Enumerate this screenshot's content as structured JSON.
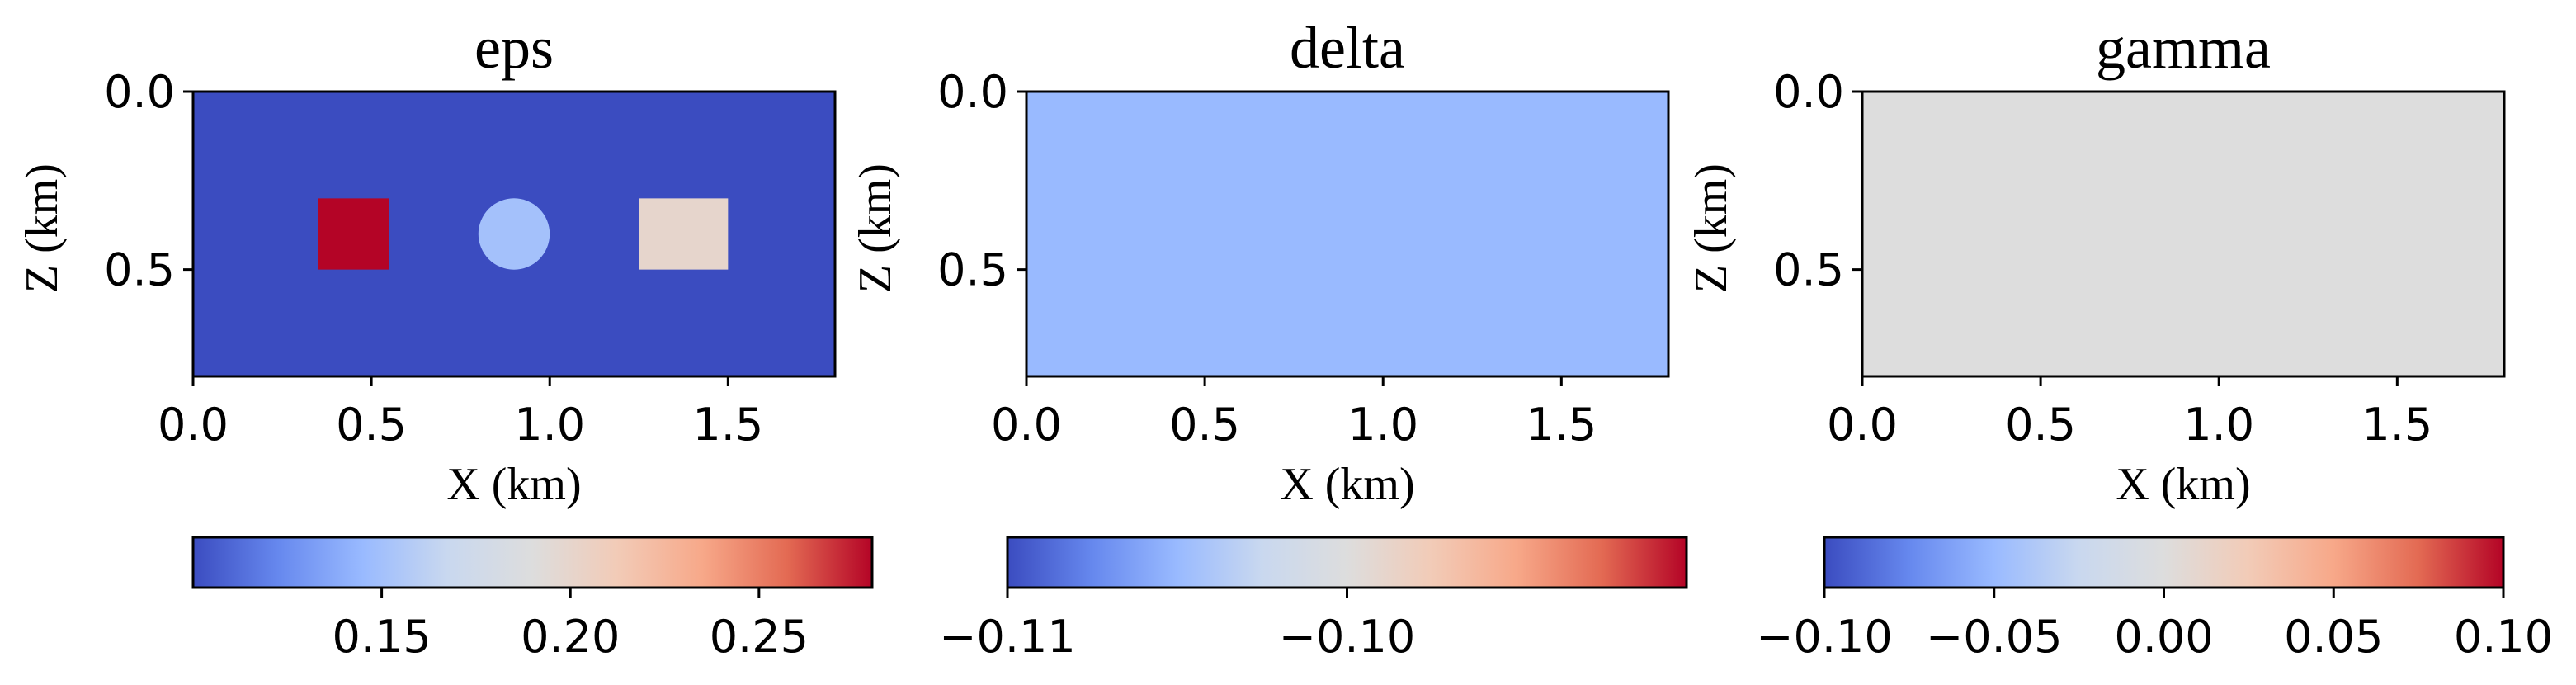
{
  "chart_data": [
    {
      "type": "heatmap",
      "title": "eps",
      "xlabel": "X (km)",
      "ylabel": "Z (km)",
      "xlim": [
        0,
        1.8
      ],
      "ylim": [
        0.8,
        0
      ],
      "x_ticks": [
        "0.0",
        "0.5",
        "1.0",
        "1.5"
      ],
      "y_ticks": [
        "0.0",
        "0.5"
      ],
      "background_value": 0.1,
      "anomalies": [
        {
          "shape": "square",
          "x_range": [
            0.35,
            0.55
          ],
          "z_range": [
            0.3,
            0.5
          ],
          "value": 0.28
        },
        {
          "shape": "circle",
          "center": [
            0.9,
            0.4
          ],
          "radius": 0.1,
          "value": 0.15
        },
        {
          "shape": "rectangle",
          "x_range": [
            1.25,
            1.5
          ],
          "z_range": [
            0.3,
            0.5
          ],
          "value": 0.2
        }
      ],
      "colorbar": {
        "cmap": "coolwarm",
        "vmin": 0.1,
        "vmax": 0.28,
        "ticks": [
          0.15,
          0.2,
          0.25
        ],
        "tick_labels": [
          "0.15",
          "0.20",
          "0.25"
        ]
      }
    },
    {
      "type": "heatmap",
      "title": "delta",
      "xlabel": "X (km)",
      "ylabel": "Z (km)",
      "xlim": [
        0,
        1.8
      ],
      "ylim": [
        0.8,
        0
      ],
      "x_ticks": [
        "0.0",
        "0.5",
        "1.0",
        "1.5"
      ],
      "y_ticks": [
        "0.0",
        "0.5"
      ],
      "background_value": -0.105,
      "anomalies": [],
      "colorbar": {
        "cmap": "coolwarm",
        "vmin": -0.11,
        "vmax": -0.09,
        "ticks": [
          -0.11,
          -0.1
        ],
        "tick_labels": [
          "−0.11",
          "−0.10"
        ]
      }
    },
    {
      "type": "heatmap",
      "title": "gamma",
      "xlabel": "X (km)",
      "ylabel": "Z (km)",
      "xlim": [
        0,
        1.8
      ],
      "ylim": [
        0.8,
        0
      ],
      "x_ticks": [
        "0.0",
        "0.5",
        "1.0",
        "1.5"
      ],
      "y_ticks": [
        "0.0",
        "0.5"
      ],
      "background_value": 0,
      "anomalies": [],
      "colorbar": {
        "cmap": "coolwarm",
        "vmin": -0.1,
        "vmax": 0.1,
        "ticks": [
          -0.1,
          -0.05,
          0,
          0.05,
          0.1
        ],
        "tick_labels": [
          "−0.10",
          "−0.05",
          "0.00",
          "0.05",
          "0.10"
        ]
      }
    }
  ],
  "colors": {
    "cmap_stops": [
      "#3b4cc0",
      "#6688ee",
      "#99baff",
      "#c9d8ef",
      "#dddddd",
      "#f2cbb7",
      "#f7a889",
      "#e36a53",
      "#b40426"
    ]
  }
}
